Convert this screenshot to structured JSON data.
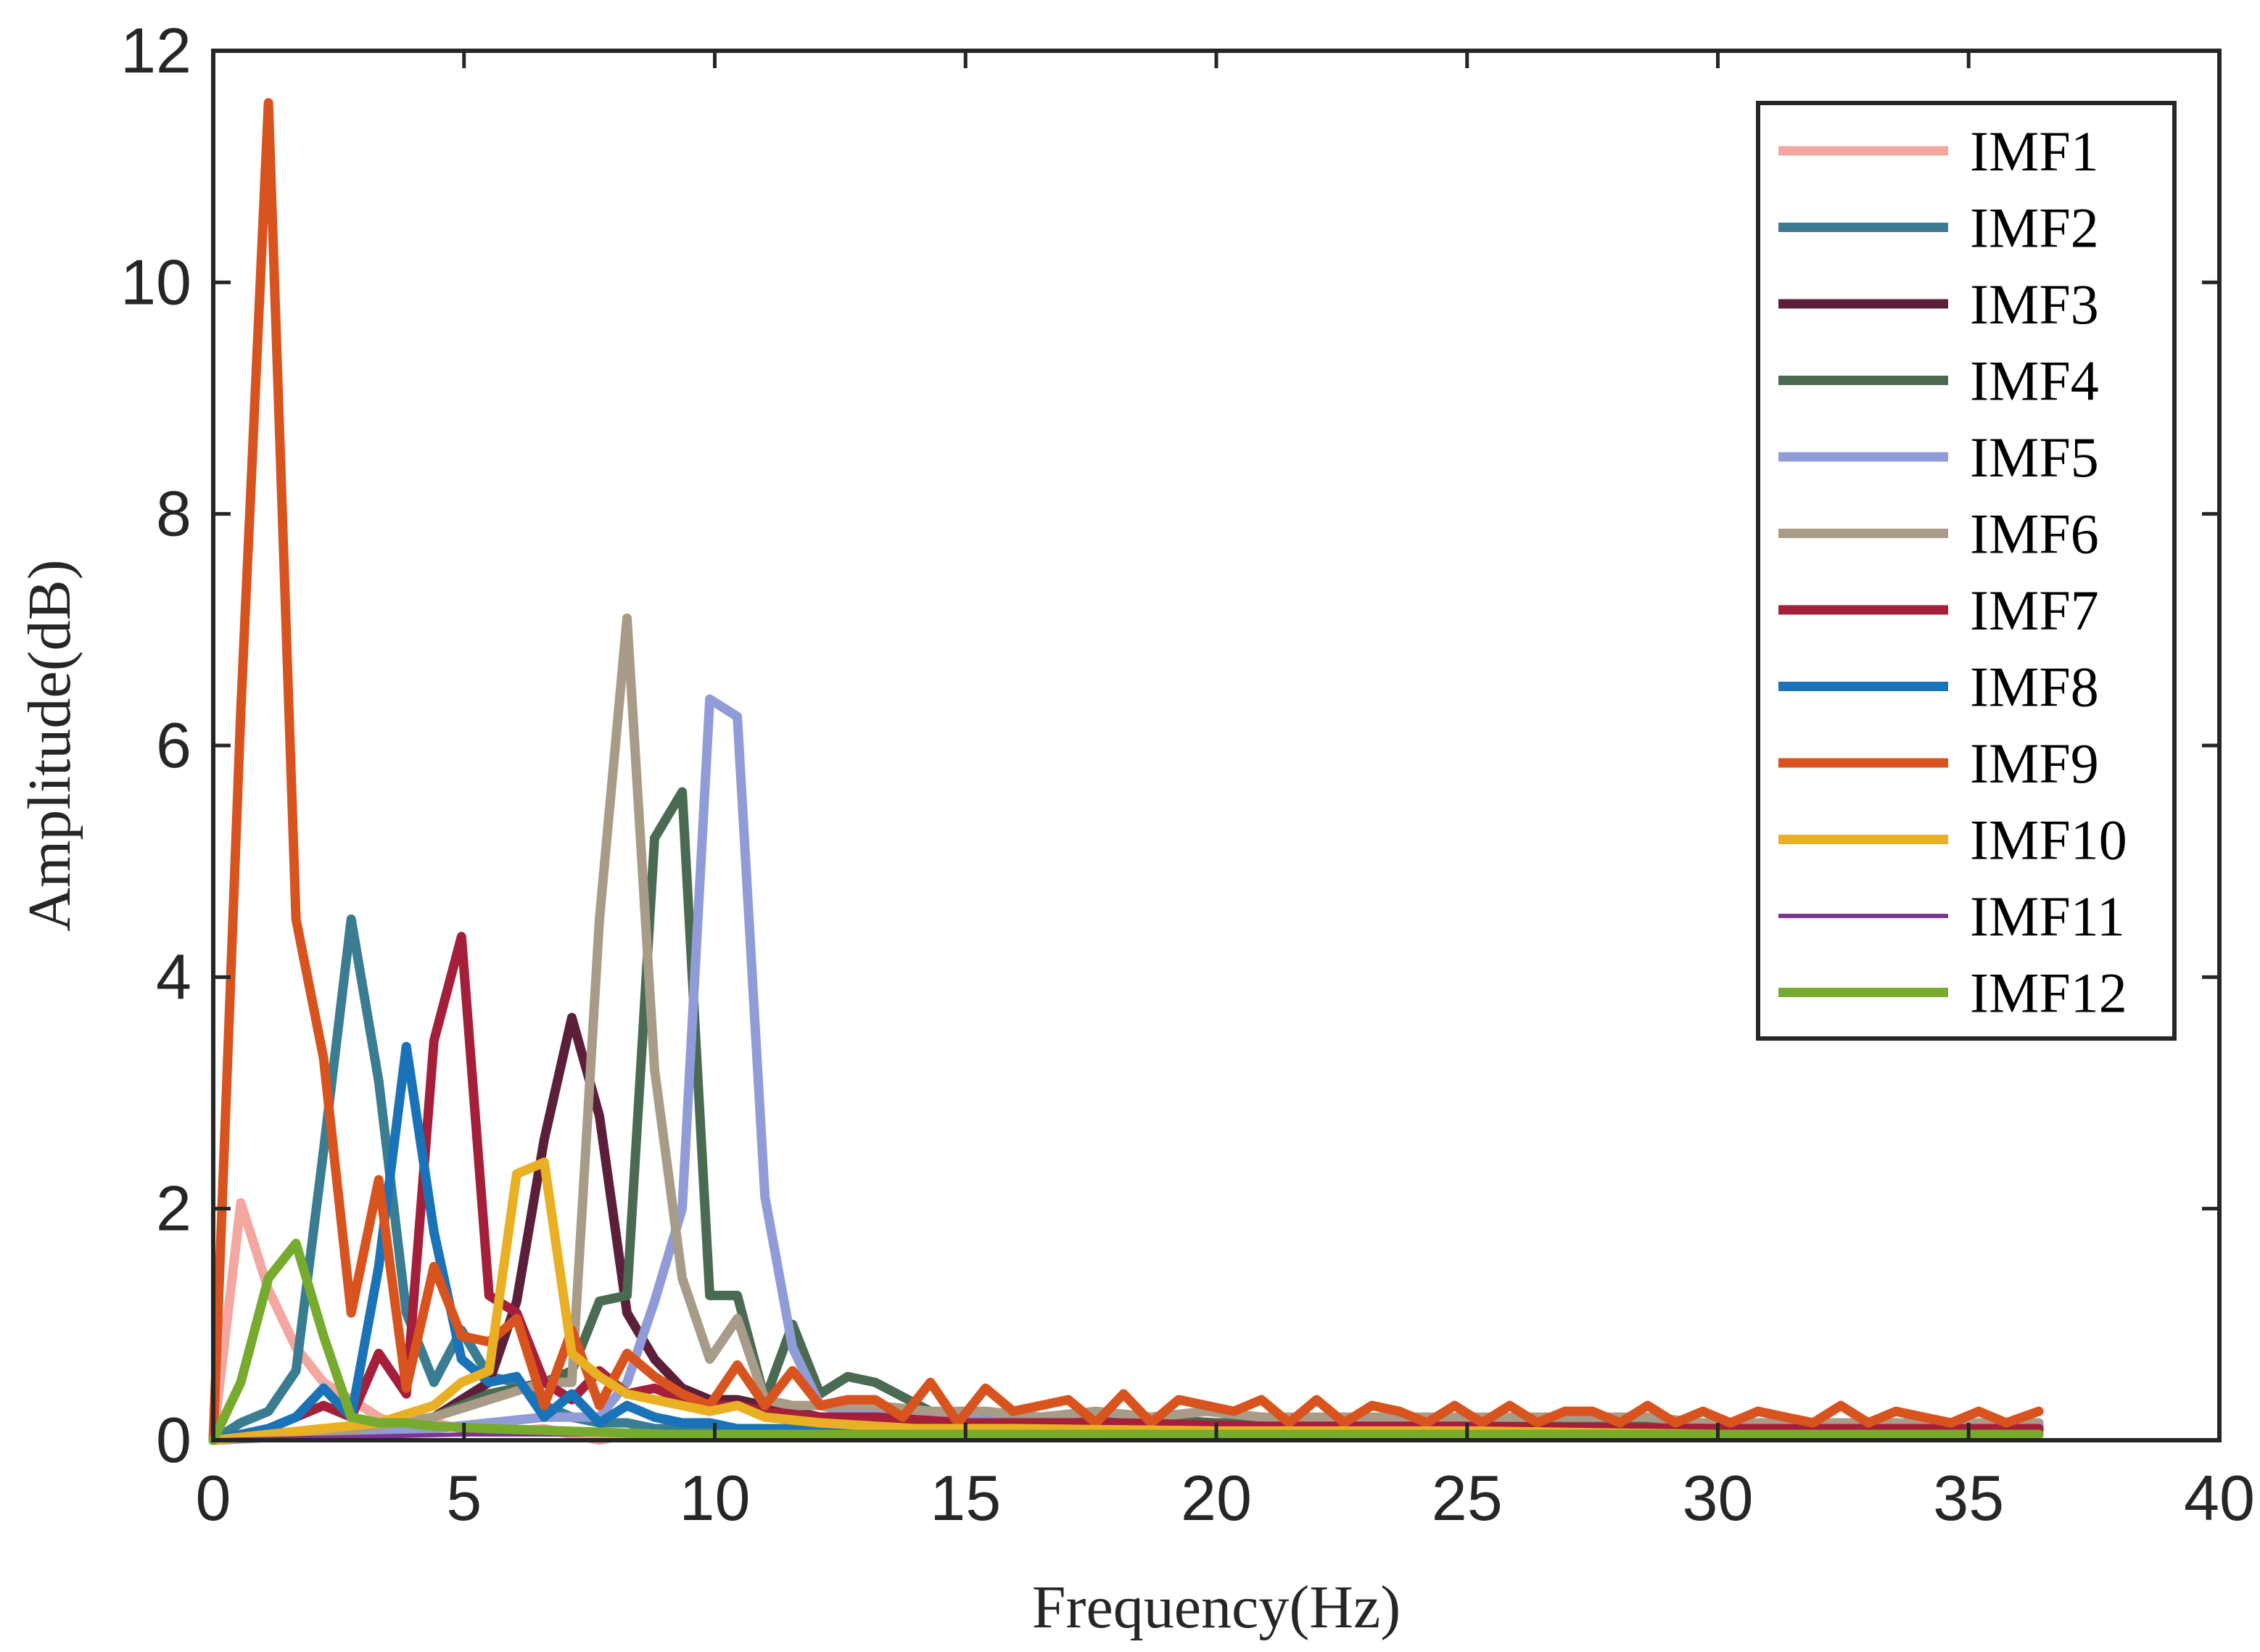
{
  "chart_data": {
    "type": "line",
    "title": "",
    "xlabel": "Frequency(Hz)",
    "ylabel": "Amplitude(dB)",
    "xlim": [
      0,
      40
    ],
    "ylim": [
      0,
      12
    ],
    "xticks": [
      0,
      5,
      10,
      15,
      20,
      25,
      30,
      35,
      40
    ],
    "yticks": [
      0,
      2,
      4,
      6,
      8,
      10,
      12
    ],
    "grid": false,
    "legend_position": "top-right",
    "series": [
      {
        "name": "IMF1",
        "color": "#f4a6a0",
        "x": [
          0,
          0.55,
          1.1,
          1.65,
          2.2,
          2.75,
          3.3,
          3.85,
          4.4,
          4.95,
          5.5,
          6.05,
          6.6,
          7.15,
          7.7,
          8.25,
          8.8,
          9.35,
          9.9,
          10.45,
          11,
          11.55,
          12.1,
          15,
          20,
          25,
          30,
          36.4
        ],
        "y": [
          0,
          2.05,
          1.3,
          0.8,
          0.5,
          0.35,
          0.2,
          0.1,
          0.15,
          0.1,
          0.12,
          0.08,
          0.1,
          0.05,
          0.0,
          0.05,
          0.05,
          0.05,
          0.05,
          0.05,
          0.05,
          0.05,
          0.05,
          0.05,
          0.05,
          0.05,
          0.05,
          0.05
        ]
      },
      {
        "name": "IMF2",
        "color": "#3a7d92",
        "x": [
          0,
          0.55,
          1.1,
          1.65,
          2.2,
          2.75,
          3.3,
          3.85,
          4.4,
          4.95,
          5.5,
          6.05,
          6.6,
          7.15,
          7.7,
          8.25,
          8.8,
          9.35,
          9.9,
          10.45,
          11,
          12,
          15,
          20,
          25,
          30,
          36.4
        ],
        "y": [
          0,
          0.15,
          0.25,
          0.6,
          2.5,
          4.5,
          3.1,
          1.1,
          0.5,
          0.95,
          0.55,
          0.5,
          0.3,
          0.2,
          0.15,
          0.15,
          0.1,
          0.1,
          0.1,
          0.1,
          0.1,
          0.1,
          0.1,
          0.08,
          0.08,
          0.08,
          0.08
        ]
      },
      {
        "name": "IMF3",
        "color": "#5c1f3a",
        "x": [
          0,
          1.1,
          2.2,
          3.3,
          4.4,
          5.5,
          6.05,
          6.6,
          7.15,
          7.7,
          8.25,
          8.8,
          9.35,
          9.9,
          10.45,
          11,
          12.1,
          13.2,
          15,
          17,
          20,
          23,
          26,
          30,
          33,
          36.4
        ],
        "y": [
          0,
          0.05,
          0.1,
          0.1,
          0.2,
          0.5,
          1.2,
          2.6,
          3.65,
          2.8,
          1.1,
          0.7,
          0.45,
          0.35,
          0.35,
          0.3,
          0.2,
          0.2,
          0.15,
          0.15,
          0.12,
          0.12,
          0.12,
          0.1,
          0.1,
          0.1
        ]
      },
      {
        "name": "IMF4",
        "color": "#4a6b52",
        "x": [
          0,
          2.2,
          4.4,
          5.5,
          6.6,
          7.15,
          7.7,
          8.25,
          8.8,
          9.35,
          9.9,
          10.45,
          11,
          11.55,
          12.1,
          12.65,
          13.2,
          14.3,
          15,
          16,
          18,
          20,
          22,
          25,
          28,
          31,
          34,
          36.4
        ],
        "y": [
          0,
          0.05,
          0.2,
          0.4,
          0.5,
          0.6,
          1.2,
          1.25,
          5.2,
          5.6,
          1.25,
          1.25,
          0.35,
          1.0,
          0.4,
          0.55,
          0.5,
          0.25,
          0.2,
          0.2,
          0.2,
          0.15,
          0.15,
          0.15,
          0.15,
          0.12,
          0.12,
          0.12
        ]
      },
      {
        "name": "IMF5",
        "color": "#909cd8",
        "x": [
          0,
          2.2,
          4.4,
          6.6,
          7.7,
          8.25,
          8.8,
          9.35,
          9.9,
          10.45,
          11,
          11.55,
          12.1,
          12.65,
          14,
          16,
          18,
          20,
          22,
          25,
          28,
          31,
          34,
          36.4
        ],
        "y": [
          0,
          0.05,
          0.1,
          0.2,
          0.2,
          0.5,
          1.2,
          2.0,
          6.4,
          6.25,
          2.1,
          0.8,
          0.3,
          0.25,
          0.2,
          0.15,
          0.15,
          0.12,
          0.12,
          0.1,
          0.1,
          0.1,
          0.1,
          0.1
        ]
      },
      {
        "name": "IMF6",
        "color": "#a89c88",
        "x": [
          0,
          2.2,
          4.4,
          5.5,
          6.6,
          7.15,
          7.7,
          8.25,
          8.8,
          9.35,
          9.9,
          10.45,
          11,
          11.55,
          12.1,
          12.65,
          13.2,
          14.3,
          15.4,
          16.5,
          17.6,
          18.7,
          19.8,
          20.9,
          22,
          23.1,
          24.2,
          25.3,
          26.4,
          27.5,
          28.6,
          29.7,
          30.8,
          31.9,
          33,
          34.1,
          35.2,
          36.4
        ],
        "y": [
          0,
          0.05,
          0.2,
          0.35,
          0.5,
          0.5,
          4.5,
          7.1,
          3.2,
          1.4,
          0.7,
          1.05,
          0.35,
          0.3,
          0.3,
          0.3,
          0.3,
          0.25,
          0.25,
          0.2,
          0.25,
          0.2,
          0.25,
          0.2,
          0.2,
          0.2,
          0.2,
          0.2,
          0.2,
          0.2,
          0.2,
          0.15,
          0.15,
          0.15,
          0.15,
          0.15,
          0.15,
          0.15
        ]
      },
      {
        "name": "IMF7",
        "color": "#a51f3a",
        "x": [
          0,
          1.1,
          2.2,
          2.75,
          3.3,
          3.85,
          4.4,
          4.95,
          5.5,
          6.05,
          6.6,
          7.15,
          7.7,
          8.25,
          8.8,
          9.35,
          9.9,
          10.45,
          11,
          12.1,
          13.2,
          15,
          18,
          21,
          25,
          30,
          36.4
        ],
        "y": [
          0,
          0.1,
          0.3,
          0.2,
          0.75,
          0.4,
          3.45,
          4.35,
          1.25,
          1.1,
          0.5,
          0.35,
          0.6,
          0.4,
          0.45,
          0.35,
          0.3,
          0.3,
          0.25,
          0.2,
          0.2,
          0.15,
          0.15,
          0.12,
          0.12,
          0.1,
          0.1
        ]
      },
      {
        "name": "IMF8",
        "color": "#1a72b8",
        "x": [
          0,
          1.1,
          1.65,
          2.2,
          2.75,
          3.3,
          3.85,
          4.4,
          4.95,
          5.5,
          6.05,
          6.6,
          7.15,
          7.7,
          8.25,
          8.8,
          9.35,
          9.9,
          10.45,
          11,
          12,
          15,
          20,
          25,
          30,
          36.4
        ],
        "y": [
          0,
          0.1,
          0.2,
          0.45,
          0.2,
          1.5,
          3.4,
          1.8,
          0.7,
          0.5,
          0.55,
          0.2,
          0.4,
          0.15,
          0.3,
          0.2,
          0.15,
          0.15,
          0.1,
          0.1,
          0.08,
          0.08,
          0.05,
          0.05,
          0.05,
          0.05
        ]
      },
      {
        "name": "IMF9",
        "color": "#d9531e",
        "x": [
          0,
          0.55,
          1.1,
          1.65,
          2.2,
          2.75,
          3.3,
          3.85,
          4.4,
          4.95,
          5.5,
          6.05,
          6.6,
          7.15,
          7.7,
          8.25,
          8.8,
          9.35,
          9.9,
          10.45,
          11,
          11.55,
          12.1,
          12.65,
          13.2,
          13.75,
          14.3,
          14.85,
          15.4,
          15.95,
          16.5,
          17.05,
          17.6,
          18.15,
          18.7,
          19.25,
          19.8,
          20.35,
          20.9,
          21.45,
          22,
          22.55,
          23.1,
          23.65,
          24.2,
          24.75,
          25.3,
          25.85,
          26.4,
          26.95,
          27.5,
          28.05,
          28.6,
          29.15,
          29.7,
          30.25,
          30.8,
          31.35,
          31.9,
          32.45,
          33,
          33.55,
          34.1,
          34.65,
          35.2,
          35.75,
          36.4
        ],
        "y": [
          0,
          6.3,
          11.55,
          4.5,
          3.3,
          1.1,
          2.25,
          0.45,
          1.5,
          0.9,
          0.85,
          1.05,
          0.3,
          0.95,
          0.3,
          0.75,
          0.55,
          0.4,
          0.3,
          0.65,
          0.3,
          0.6,
          0.3,
          0.35,
          0.35,
          0.2,
          0.5,
          0.15,
          0.45,
          0.25,
          0.3,
          0.35,
          0.15,
          0.4,
          0.15,
          0.35,
          0.3,
          0.25,
          0.35,
          0.15,
          0.35,
          0.15,
          0.3,
          0.25,
          0.15,
          0.3,
          0.15,
          0.3,
          0.15,
          0.25,
          0.25,
          0.15,
          0.3,
          0.15,
          0.25,
          0.15,
          0.25,
          0.2,
          0.15,
          0.3,
          0.15,
          0.25,
          0.2,
          0.15,
          0.25,
          0.15,
          0.25
        ]
      },
      {
        "name": "IMF10",
        "color": "#e9b024",
        "x": [
          0,
          1.1,
          2.2,
          3.3,
          4.4,
          4.95,
          5.5,
          6.05,
          6.6,
          7.15,
          7.7,
          8.25,
          8.8,
          9.35,
          9.9,
          10.45,
          11,
          12.1,
          14,
          16,
          20,
          25,
          30,
          36.4
        ],
        "y": [
          0,
          0.05,
          0.1,
          0.15,
          0.3,
          0.5,
          0.6,
          2.3,
          2.4,
          0.75,
          0.55,
          0.4,
          0.35,
          0.3,
          0.25,
          0.3,
          0.2,
          0.15,
          0.1,
          0.1,
          0.08,
          0.08,
          0.05,
          0.05
        ]
      },
      {
        "name": "IMF11",
        "color": "#7e3490",
        "x": [
          0,
          5,
          10,
          15,
          20,
          25,
          30,
          36.4
        ],
        "y": [
          0,
          0.05,
          0.05,
          0.05,
          0.05,
          0.05,
          0.05,
          0.05
        ]
      },
      {
        "name": "IMF12",
        "color": "#76ab2e",
        "x": [
          0,
          0.55,
          1.1,
          1.65,
          2.2,
          2.75,
          3.3,
          3.85,
          4.4,
          5.5,
          7,
          9,
          12,
          15,
          20,
          25,
          30,
          36.4
        ],
        "y": [
          0,
          0.5,
          1.4,
          1.7,
          0.9,
          0.2,
          0.15,
          0.15,
          0.12,
          0.1,
          0.08,
          0.05,
          0.05,
          0.05,
          0.05,
          0.05,
          0.05,
          0.05
        ]
      }
    ]
  }
}
